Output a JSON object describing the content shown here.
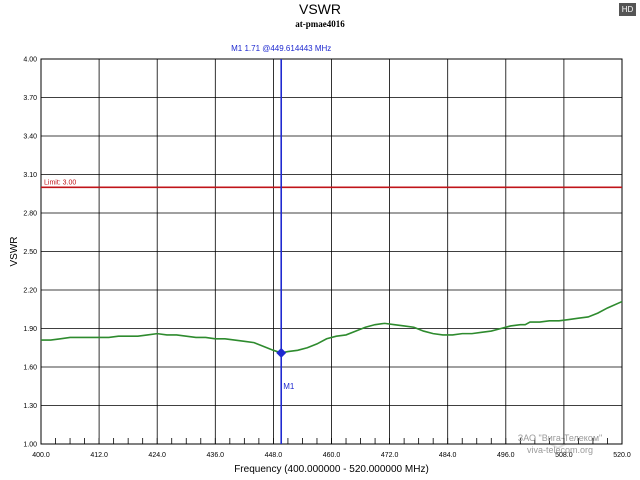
{
  "badge": "HD",
  "watermark": {
    "company": "ЗАО \"Вига-Телеком\"",
    "site": "viva-telecom.org"
  },
  "chart_data": {
    "type": "line",
    "title": "VSWR",
    "subtitle": "at-pmae4016",
    "xlabel": "Frequency (400.000000 - 520.000000 MHz)",
    "ylabel": "VSWR",
    "xlim": [
      400,
      520
    ],
    "ylim": [
      1.0,
      4.0
    ],
    "grid": true,
    "x_ticks": [
      "400.0",
      "412.0",
      "424.0",
      "436.0",
      "448.0",
      "460.0",
      "472.0",
      "484.0",
      "496.0",
      "508.0",
      "520.0"
    ],
    "y_ticks": [
      "1.00",
      "1.30",
      "1.60",
      "1.90",
      "2.20",
      "2.50",
      "2.80",
      "3.10",
      "3.40",
      "3.70",
      "4.00"
    ],
    "limit": {
      "label": "Limit: 3.00",
      "value": 3.0,
      "color": "#c0141a"
    },
    "marker": {
      "name": "M1",
      "label": "M1   1.71 @449.614443 MHz",
      "x": 449.614443,
      "y": 1.71,
      "color": "#1f2ad0"
    },
    "series": [
      {
        "color": "#2e8b2e",
        "points": [
          [
            400,
            1.81
          ],
          [
            402,
            1.81
          ],
          [
            404,
            1.82
          ],
          [
            406,
            1.83
          ],
          [
            408,
            1.83
          ],
          [
            410,
            1.83
          ],
          [
            412,
            1.83
          ],
          [
            414,
            1.83
          ],
          [
            416,
            1.84
          ],
          [
            418,
            1.84
          ],
          [
            420,
            1.84
          ],
          [
            422,
            1.85
          ],
          [
            424,
            1.86
          ],
          [
            426,
            1.85
          ],
          [
            428,
            1.85
          ],
          [
            430,
            1.84
          ],
          [
            432,
            1.83
          ],
          [
            434,
            1.83
          ],
          [
            436,
            1.82
          ],
          [
            438,
            1.82
          ],
          [
            440,
            1.81
          ],
          [
            442,
            1.8
          ],
          [
            444,
            1.79
          ],
          [
            446,
            1.76
          ],
          [
            448,
            1.73
          ],
          [
            449.6,
            1.71
          ],
          [
            451,
            1.72
          ],
          [
            453,
            1.73
          ],
          [
            455,
            1.75
          ],
          [
            457,
            1.78
          ],
          [
            459,
            1.82
          ],
          [
            461,
            1.84
          ],
          [
            463,
            1.85
          ],
          [
            465,
            1.88
          ],
          [
            467,
            1.91
          ],
          [
            469,
            1.93
          ],
          [
            471,
            1.94
          ],
          [
            473,
            1.93
          ],
          [
            475,
            1.92
          ],
          [
            477,
            1.91
          ],
          [
            479,
            1.88
          ],
          [
            481,
            1.86
          ],
          [
            483,
            1.85
          ],
          [
            485,
            1.85
          ],
          [
            487,
            1.86
          ],
          [
            489,
            1.86
          ],
          [
            491,
            1.87
          ],
          [
            493,
            1.88
          ],
          [
            495,
            1.9
          ],
          [
            497,
            1.92
          ],
          [
            499,
            1.93
          ],
          [
            500,
            1.93
          ],
          [
            501,
            1.95
          ],
          [
            503,
            1.95
          ],
          [
            505,
            1.96
          ],
          [
            507,
            1.96
          ],
          [
            509,
            1.97
          ],
          [
            511,
            1.98
          ],
          [
            513,
            1.99
          ],
          [
            515,
            2.02
          ],
          [
            517,
            2.06
          ],
          [
            520,
            2.11
          ]
        ]
      }
    ]
  }
}
